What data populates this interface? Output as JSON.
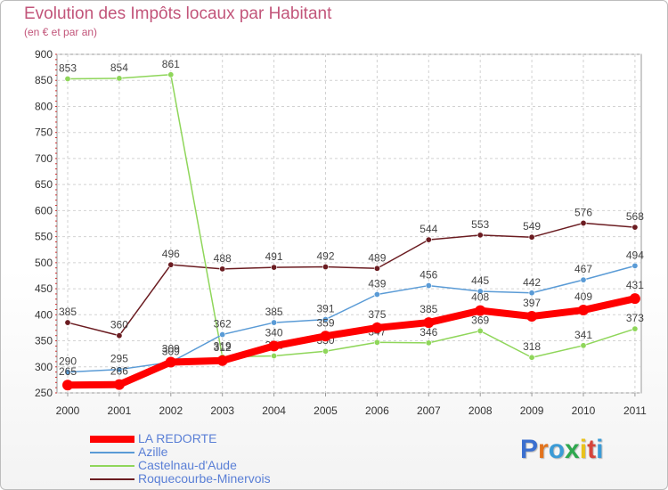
{
  "chart_data": {
    "type": "line",
    "title": "Evolution des Impôts locaux par Habitant",
    "subtitle": "(en € et par an)",
    "xlabel": "",
    "ylabel": "",
    "ylim": [
      250,
      900
    ],
    "y_ticks": [
      250,
      300,
      350,
      400,
      450,
      500,
      550,
      600,
      650,
      700,
      750,
      800,
      850,
      900
    ],
    "categories": [
      "2000",
      "2001",
      "2002",
      "2003",
      "2004",
      "2005",
      "2006",
      "2007",
      "2008",
      "2009",
      "2010",
      "2011"
    ],
    "grid": true,
    "legend_position": "bottom-left",
    "series": [
      {
        "name": "Roquecourbe-Minervois",
        "color": "#6b1c21",
        "values": [
          385,
          360,
          496,
          488,
          491,
          492,
          489,
          544,
          553,
          549,
          576,
          568
        ]
      },
      {
        "name": "Castelnau-d'Aude",
        "color": "#8fd65a",
        "values": [
          853,
          854,
          861,
          319,
          321,
          330,
          347,
          346,
          369,
          318,
          341,
          373
        ]
      },
      {
        "name": "Azille",
        "color": "#5a9bd6",
        "values": [
          290,
          295,
          309,
          362,
          385,
          391,
          439,
          456,
          445,
          442,
          467,
          494
        ]
      },
      {
        "name": "LA REDORTE",
        "color": "#ff0000",
        "values": [
          265,
          266,
          309,
          312,
          340,
          359,
          375,
          385,
          408,
          397,
          409,
          431
        ]
      }
    ],
    "legend_entries": [
      "LA REDORTE",
      "Azille",
      "Castelnau-d'Aude",
      "Roquecourbe-Minervois"
    ]
  },
  "logo": {
    "text": "Proxiti"
  }
}
